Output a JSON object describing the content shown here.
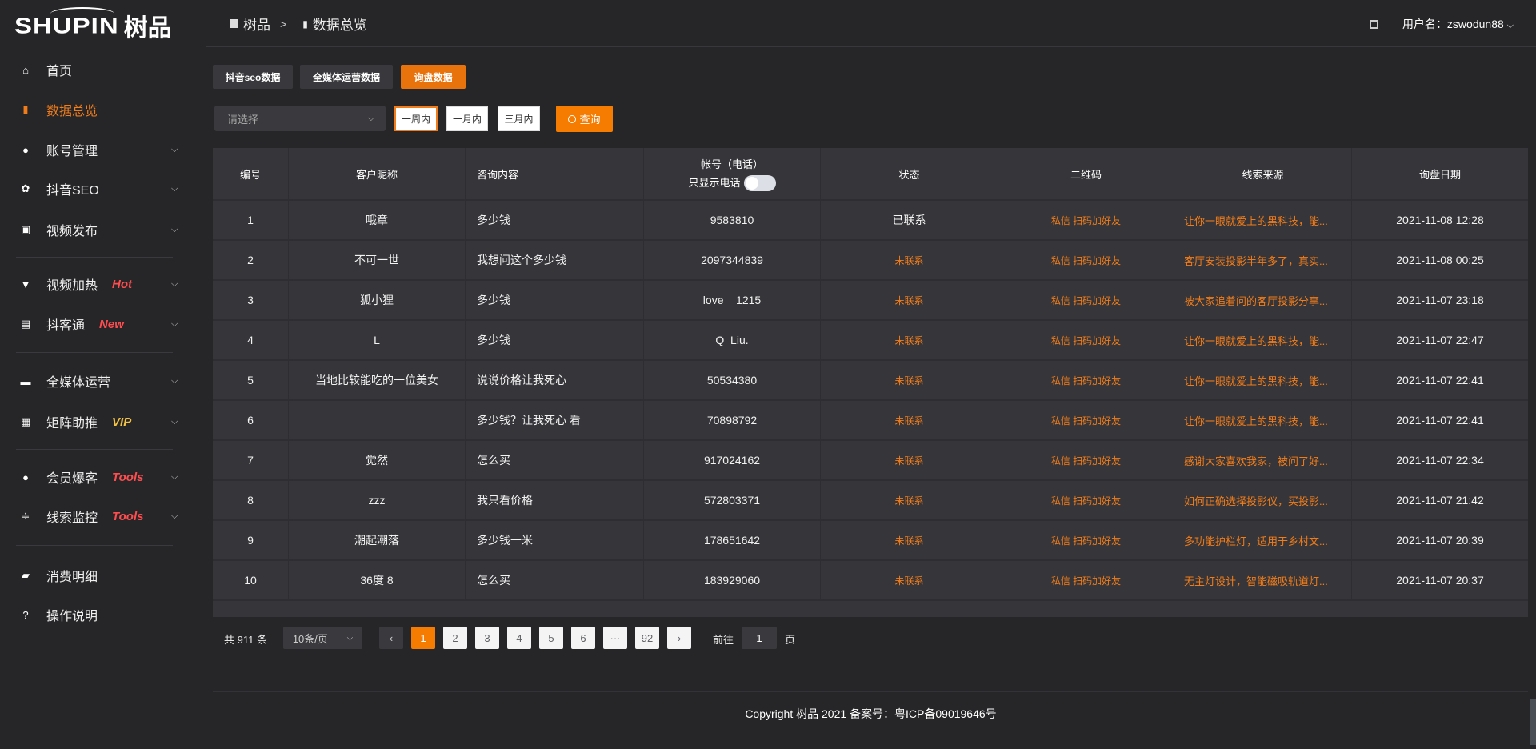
{
  "brand": {
    "logo_en": "SHUPIN",
    "logo_cn": "树品"
  },
  "breadcrumb": {
    "root": "树品",
    "separator": ">",
    "current": "数据总览"
  },
  "header": {
    "user_label": "用户名：zswodun88",
    "fullscreen_icon": "fullscreen-icon"
  },
  "sidebar": {
    "items": [
      {
        "label": "首页",
        "icon": "home-icon",
        "glyph": "⌂"
      },
      {
        "label": "数据总览",
        "icon": "bar-chart-icon",
        "glyph": "▮",
        "active": true
      },
      {
        "label": "账号管理",
        "icon": "user-icon",
        "glyph": "●",
        "expandable": true
      },
      {
        "label": "抖音SEO",
        "icon": "gear-icon",
        "glyph": "✿",
        "expandable": true
      },
      {
        "label": "视频发布",
        "icon": "camera-icon",
        "glyph": "▣",
        "expandable": true
      },
      {
        "label": "视频加热",
        "icon": "monitor-stand-icon",
        "glyph": "▼",
        "tag": "Hot",
        "tag_color": "#ff4d4f",
        "expandable": true
      },
      {
        "label": "抖客通",
        "icon": "chat-icon",
        "glyph": "▤",
        "tag": "New",
        "tag_color": "#ff4d4f",
        "expandable": true
      },
      {
        "label": "全媒体运营",
        "icon": "desktop-icon",
        "glyph": "▬",
        "expandable": true
      },
      {
        "label": "矩阵助推",
        "icon": "grid-icon",
        "glyph": "▦",
        "tag": "VIP",
        "tag_color": "#f5c342",
        "expandable": true
      },
      {
        "label": "会员爆客",
        "icon": "user-icon",
        "glyph": "●",
        "tag": "Tools",
        "tag_color": "#ff4d4f",
        "expandable": true
      },
      {
        "label": "线索监控",
        "icon": "sliders-icon",
        "glyph": "≑",
        "tag": "Tools",
        "tag_color": "#ff4d4f",
        "expandable": true
      },
      {
        "label": "消费明细",
        "icon": "wallet-icon",
        "glyph": "▰"
      },
      {
        "label": "操作说明",
        "icon": "question-icon",
        "glyph": "?"
      }
    ]
  },
  "tabs": [
    {
      "label": "抖音seo数据"
    },
    {
      "label": "全媒体运营数据"
    },
    {
      "label": "询盘数据",
      "active": true
    }
  ],
  "filters": {
    "select_placeholder": "请选择",
    "ranges": [
      {
        "label": "一周内",
        "active": true
      },
      {
        "label": "一月内"
      },
      {
        "label": "三月内"
      }
    ],
    "query_label": "查询"
  },
  "table": {
    "headers": [
      "编号",
      "客户昵称",
      "咨询内容",
      "帐号（电话）",
      "状态",
      "二维码",
      "线索来源",
      "询盘日期"
    ],
    "phone_toggle_label": "只显示电话",
    "phone_toggle_on": false,
    "rows": [
      [
        "1",
        "哦章",
        "多少钱",
        "9583810",
        "已联系",
        "私信 扫码加好友",
        "让你一眼就爱上的黑科技，能...",
        "2021-11-08 12:28"
      ],
      [
        "2",
        "不可一世",
        "我想问这个多少钱",
        "2097344839",
        "未联系",
        "私信 扫码加好友",
        "客厅安装投影半年多了，真实...",
        "2021-11-08 00:25"
      ],
      [
        "3",
        "狐小狸",
        "多少钱",
        "love__1215",
        "未联系",
        "私信 扫码加好友",
        "被大家追着问的客厅投影分享...",
        "2021-11-07 23:18"
      ],
      [
        "4",
        "L",
        "多少钱",
        "Q_Liu.",
        "未联系",
        "私信 扫码加好友",
        "让你一眼就爱上的黑科技，能...",
        "2021-11-07 22:47"
      ],
      [
        "5",
        "当地比较能吃的一位美女",
        "说说价格让我死心",
        "50534380",
        "未联系",
        "私信 扫码加好友",
        "让你一眼就爱上的黑科技，能...",
        "2021-11-07 22:41"
      ],
      [
        "6",
        "",
        "多少钱？让我死心 看",
        "70898792",
        "未联系",
        "私信 扫码加好友",
        "让你一眼就爱上的黑科技，能...",
        "2021-11-07 22:41"
      ],
      [
        "7",
        "觉然",
        "怎么买",
        "917024162",
        "未联系",
        "私信 扫码加好友",
        "感谢大家喜欢我家，被问了好...",
        "2021-11-07 22:34"
      ],
      [
        "8",
        "zzz",
        "我只看价格",
        "572803371",
        "未联系",
        "私信 扫码加好友",
        "如何正确选择投影仪，买投影...",
        "2021-11-07 21:42"
      ],
      [
        "9",
        "潮起潮落",
        "多少钱一米",
        "178651642",
        "未联系",
        "私信 扫码加好友",
        "多功能护栏灯，适用于乡村文...",
        "2021-11-07 20:39"
      ],
      [
        "10",
        "36度 8",
        "怎么买",
        "183929060",
        "未联系",
        "私信 扫码加好友",
        "无主灯设计，智能磁吸轨道灯...",
        "2021-11-07 20:37"
      ]
    ]
  },
  "pagination": {
    "total_label": "共 911 条",
    "page_size": "10条/页",
    "prev": "‹",
    "next": "›",
    "pages": [
      "1",
      "2",
      "3",
      "4",
      "5",
      "6",
      "···",
      "92"
    ],
    "current": "1",
    "goto_label": "前往",
    "goto_value": "1",
    "page_suffix": "页"
  },
  "footer": {
    "copyright": "Copyright 树品 2021 备案号：粤ICP备09019646号"
  },
  "colors": {
    "accent": "#f57c00",
    "background": "#262628",
    "table": "#36363a",
    "tag_red": "#ff4d4f",
    "tag_gold": "#f5c342"
  }
}
